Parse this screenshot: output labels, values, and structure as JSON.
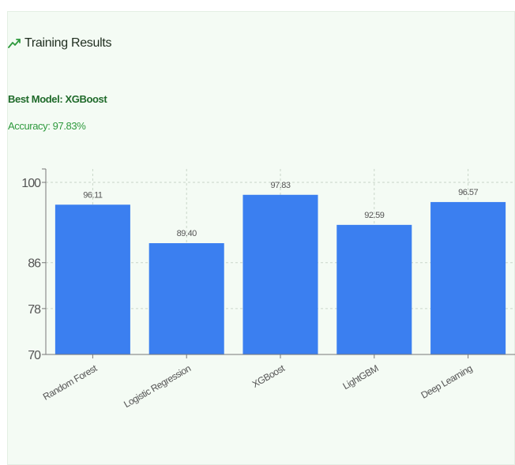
{
  "header": {
    "title": "Training Results",
    "icon": "trending-up-icon",
    "best_model": "Best Model: XGBoost",
    "accuracy": "Accuracy: 97.83%"
  },
  "colors": {
    "bar": "#3b7ff0",
    "title_green": "#1f6a2a",
    "accent_green": "#2f9a3e",
    "card_background": "#f4fbf4"
  },
  "chart_data": {
    "type": "bar",
    "categories": [
      "Random Forest",
      "Logistic Regression",
      "XGBoost",
      "LightGBM",
      "Deep Learning"
    ],
    "values": [
      96.11,
      89.4,
      97.83,
      92.59,
      96.57
    ],
    "value_labels": [
      "96.11",
      "89.40",
      "97.83",
      "92.59",
      "96.57"
    ],
    "y_ticks": [
      70,
      78,
      86,
      100
    ],
    "ylim": [
      70,
      100
    ],
    "grid": true,
    "legend": "none",
    "xlabel": "",
    "ylabel": ""
  }
}
